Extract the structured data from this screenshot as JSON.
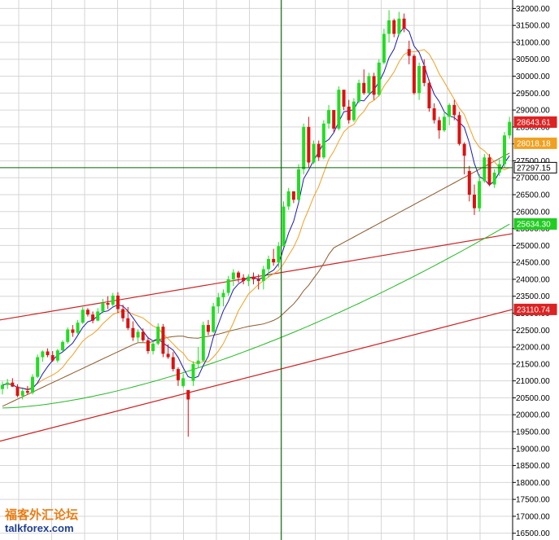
{
  "chart_data": {
    "type": "candlestick",
    "ylim": [
      16300,
      32250
    ],
    "y_ticks": [
      "32000.00",
      "31500.00",
      "31000.00",
      "30500.00",
      "30000.00",
      "29500.00",
      "29000.00",
      "28500.00",
      "28000.00",
      "27500.00",
      "27000.00",
      "26500.00",
      "26000.00",
      "25500.00",
      "25000.00",
      "24500.00",
      "24000.00",
      "23500.00",
      "23000.00",
      "22500.00",
      "22000.00",
      "21500.00",
      "21000.00",
      "20500.00",
      "20000.00",
      "19500.00",
      "19000.00",
      "18500.00",
      "18000.00",
      "17500.00",
      "17000.00",
      "16500.00"
    ],
    "grid": true,
    "price_tags": [
      {
        "value": "28643.61",
        "y": 28643.61,
        "color": "#dd2222"
      },
      {
        "value": "28018.18",
        "y": 28018.18,
        "color": "#f0a020"
      },
      {
        "value": "27297.15",
        "y": 27297.15,
        "color": "#ffffff"
      },
      {
        "value": "25634.30",
        "y": 25634.3,
        "color": "#22cc22"
      },
      {
        "value": "23110.74",
        "y": 23110.74,
        "color": "#dd2222"
      }
    ],
    "crosshair": {
      "x_index": 56,
      "y": 27297.15
    },
    "candles": [
      [
        20760,
        20980,
        20600,
        20880
      ],
      [
        20880,
        21060,
        20760,
        20950
      ],
      [
        20950,
        21080,
        20820,
        20830
      ],
      [
        20830,
        20900,
        20520,
        20560
      ],
      [
        20560,
        20760,
        20450,
        20700
      ],
      [
        20700,
        20850,
        20600,
        20650
      ],
      [
        20650,
        21200,
        20600,
        21120
      ],
      [
        21120,
        21780,
        21080,
        21700
      ],
      [
        21700,
        21900,
        21560,
        21870
      ],
      [
        21870,
        21960,
        21700,
        21760
      ],
      [
        21760,
        21880,
        21560,
        21600
      ],
      [
        21600,
        21950,
        21540,
        21900
      ],
      [
        21900,
        22200,
        21880,
        22150
      ],
      [
        22150,
        22580,
        22100,
        22520
      ],
      [
        22520,
        22650,
        22300,
        22420
      ],
      [
        22420,
        22800,
        22380,
        22720
      ],
      [
        22720,
        23180,
        22680,
        23100
      ],
      [
        23100,
        23150,
        22900,
        22960
      ],
      [
        22960,
        23050,
        22700,
        22780
      ],
      [
        22780,
        23150,
        22760,
        23050
      ],
      [
        23050,
        23420,
        23000,
        23300
      ],
      [
        23300,
        23500,
        23120,
        23250
      ],
      [
        23250,
        23600,
        23200,
        23520
      ],
      [
        23520,
        23620,
        23000,
        23120
      ],
      [
        23120,
        23250,
        22750,
        22850
      ],
      [
        22850,
        23180,
        22500,
        22560
      ],
      [
        22560,
        22760,
        22180,
        22280
      ],
      [
        22280,
        22520,
        22150,
        22450
      ],
      [
        22450,
        22550,
        22150,
        22200
      ],
      [
        22200,
        22300,
        21800,
        21880
      ],
      [
        21880,
        22180,
        21780,
        22100
      ],
      [
        22100,
        22700,
        22050,
        22600
      ],
      [
        22600,
        22680,
        21700,
        21800
      ],
      [
        21800,
        22080,
        21650,
        21700
      ],
      [
        21700,
        21850,
        21280,
        21350
      ],
      [
        21350,
        21400,
        20850,
        21020
      ],
      [
        20850,
        21200,
        20800,
        21080
      ],
      [
        20730,
        20700,
        19350,
        20450
      ],
      [
        21000,
        21580,
        20850,
        21500
      ],
      [
        21500,
        22000,
        21380,
        21600
      ],
      [
        21600,
        22750,
        21550,
        22650
      ],
      [
        22650,
        22800,
        22350,
        22450
      ],
      [
        22450,
        23300,
        22420,
        23200
      ],
      [
        23200,
        23600,
        23000,
        23470
      ],
      [
        23470,
        23700,
        23200,
        23600
      ],
      [
        23600,
        24100,
        23520,
        24000
      ],
      [
        24000,
        24300,
        23800,
        24200
      ],
      [
        24200,
        24250,
        23900,
        24050
      ],
      [
        24050,
        24150,
        23850,
        23950
      ],
      [
        23950,
        24150,
        23800,
        24080
      ],
      [
        24080,
        24200,
        23850,
        24000
      ],
      [
        24000,
        24150,
        23700,
        23950
      ],
      [
        23950,
        24400,
        23700,
        24300
      ],
      [
        24300,
        24700,
        24050,
        24600
      ],
      [
        24600,
        24900,
        24400,
        24500
      ],
      [
        24500,
        25100,
        24350,
        24980
      ],
      [
        24980,
        26300,
        24950,
        26150
      ],
      [
        26150,
        26700,
        26050,
        26600
      ],
      [
        26600,
        26500,
        26250,
        26350
      ],
      [
        26350,
        27400,
        26300,
        27250
      ],
      [
        27250,
        28600,
        27100,
        28500
      ],
      [
        28500,
        28800,
        27300,
        27450
      ],
      [
        27450,
        28100,
        27400,
        28000
      ],
      [
        28000,
        28100,
        27500,
        27600
      ],
      [
        27600,
        28700,
        27550,
        28600
      ],
      [
        28600,
        29150,
        28450,
        29000
      ],
      [
        29000,
        28900,
        28350,
        28450
      ],
      [
        28450,
        29700,
        28400,
        29600
      ],
      [
        29600,
        29500,
        29000,
        29100
      ],
      [
        29100,
        29300,
        28600,
        28700
      ],
      [
        28700,
        29350,
        28650,
        29250
      ],
      [
        29250,
        29900,
        29200,
        29800
      ],
      [
        29800,
        30200,
        29450,
        29500
      ],
      [
        29500,
        30100,
        29450,
        30000
      ],
      [
        30000,
        30100,
        29300,
        29450
      ],
      [
        29450,
        30500,
        29400,
        30400
      ],
      [
        30400,
        31400,
        30350,
        31250
      ],
      [
        31250,
        31950,
        31000,
        31650
      ],
      [
        31650,
        31700,
        31150,
        31250
      ],
      [
        31250,
        31900,
        31200,
        31700
      ],
      [
        31700,
        31850,
        31300,
        31400
      ],
      [
        30800,
        31050,
        30350,
        30600
      ],
      [
        30600,
        30650,
        29450,
        29500
      ],
      [
        29500,
        30400,
        29300,
        30300
      ],
      [
        30300,
        30500,
        29700,
        29800
      ],
      [
        29800,
        29900,
        28950,
        29050
      ],
      [
        29050,
        29200,
        28600,
        28700
      ],
      [
        28700,
        28800,
        28150,
        28400
      ],
      [
        28400,
        28950,
        28350,
        28800
      ],
      [
        28800,
        29200,
        28550,
        29150
      ],
      [
        29150,
        29300,
        28700,
        28850
      ],
      [
        28850,
        28950,
        27950,
        28000
      ],
      [
        28000,
        28050,
        27100,
        27650
      ],
      [
        27200,
        27350,
        26300,
        26500
      ],
      [
        26500,
        26800,
        25900,
        26100
      ],
      [
        26100,
        27100,
        26000,
        26900
      ],
      [
        26900,
        27700,
        26850,
        27600
      ],
      [
        27600,
        27700,
        26750,
        26800
      ],
      [
        26800,
        27250,
        26700,
        27150
      ],
      [
        27150,
        27550,
        27050,
        27400
      ],
      [
        27400,
        28350,
        27300,
        28250
      ],
      [
        28250,
        28800,
        28150,
        28650
      ]
    ]
  }
}
